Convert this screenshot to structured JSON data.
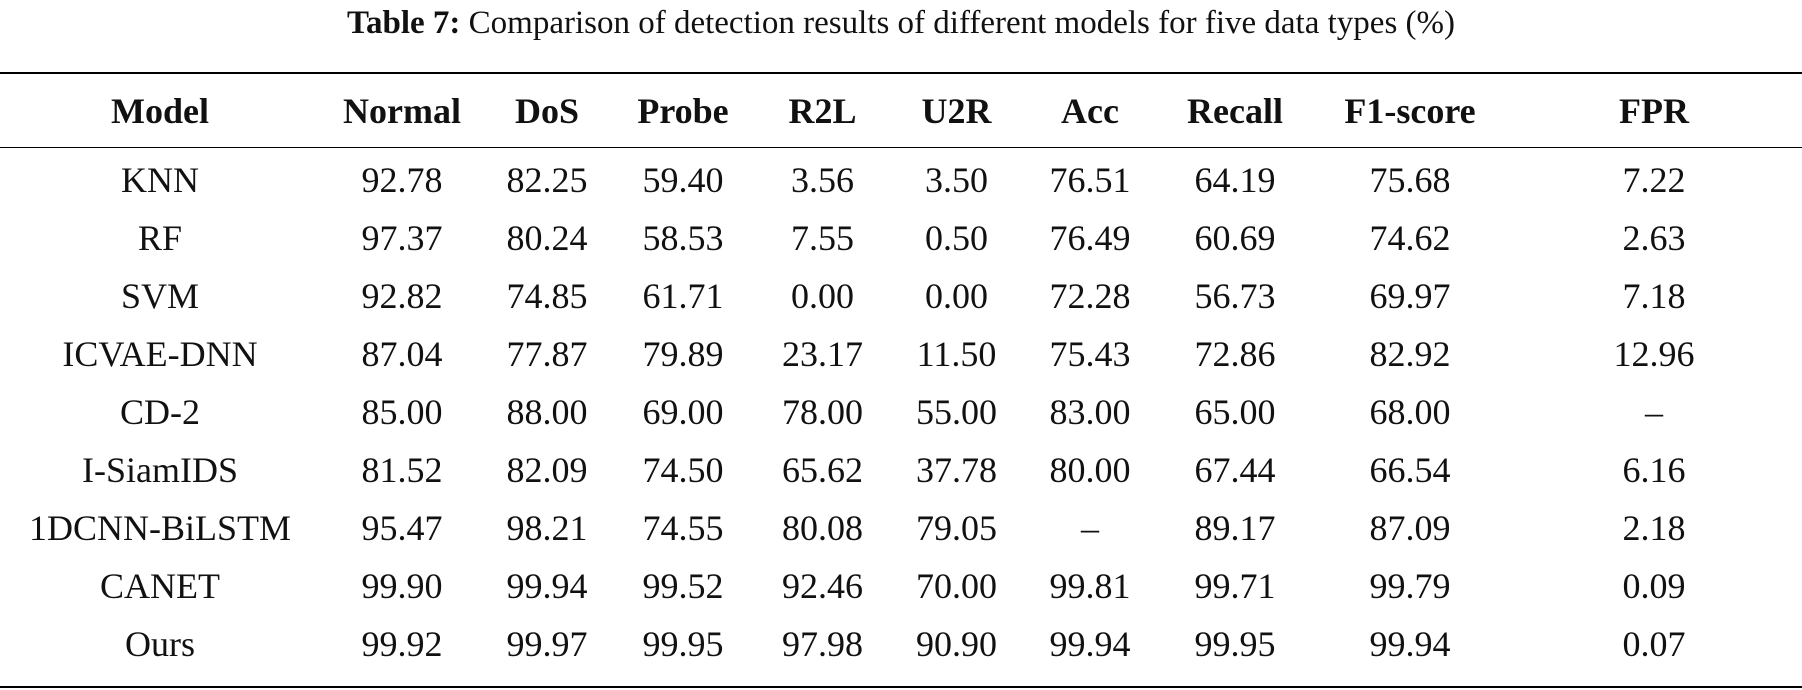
{
  "caption": {
    "label": "Table 7:",
    "text": "Comparison of detection results of different models for five data types (%)"
  },
  "table": {
    "columns": [
      "Model",
      "Normal",
      "DoS",
      "Probe",
      "R2L",
      "U2R",
      "Acc",
      "Recall",
      "F1-score",
      "FPR"
    ],
    "rows": [
      [
        "KNN",
        "92.78",
        "82.25",
        "59.40",
        "3.56",
        "3.50",
        "76.51",
        "64.19",
        "75.68",
        "7.22"
      ],
      [
        "RF",
        "97.37",
        "80.24",
        "58.53",
        "7.55",
        "0.50",
        "76.49",
        "60.69",
        "74.62",
        "2.63"
      ],
      [
        "SVM",
        "92.82",
        "74.85",
        "61.71",
        "0.00",
        "0.00",
        "72.28",
        "56.73",
        "69.97",
        "7.18"
      ],
      [
        "ICVAE-DNN",
        "87.04",
        "77.87",
        "79.89",
        "23.17",
        "11.50",
        "75.43",
        "72.86",
        "82.92",
        "12.96"
      ],
      [
        "CD-2",
        "85.00",
        "88.00",
        "69.00",
        "78.00",
        "55.00",
        "83.00",
        "65.00",
        "68.00",
        "–"
      ],
      [
        "I-SiamIDS",
        "81.52",
        "82.09",
        "74.50",
        "65.62",
        "37.78",
        "80.00",
        "67.44",
        "66.54",
        "6.16"
      ],
      [
        "1DCNN-BiLSTM",
        "95.47",
        "98.21",
        "74.55",
        "80.08",
        "79.05",
        "–",
        "89.17",
        "87.09",
        "2.18"
      ],
      [
        "CANET",
        "99.90",
        "99.94",
        "99.52",
        "92.46",
        "70.00",
        "99.81",
        "99.71",
        "99.79",
        "0.09"
      ],
      [
        "Ours",
        "99.92",
        "99.97",
        "99.95",
        "97.98",
        "90.90",
        "99.94",
        "99.95",
        "99.94",
        "0.07"
      ]
    ]
  }
}
